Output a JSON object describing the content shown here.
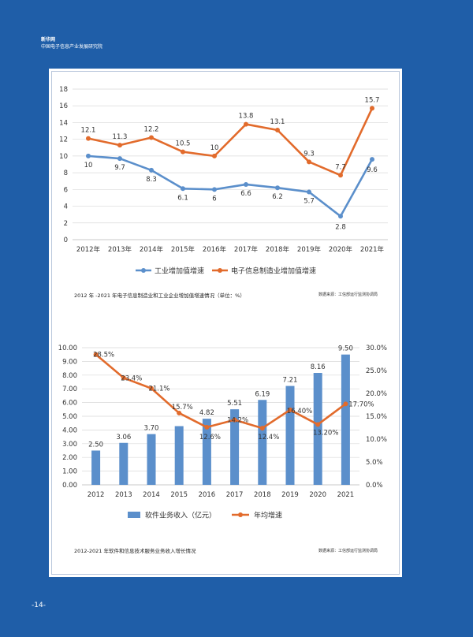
{
  "header": {
    "brand": "新华网",
    "institute": "中国电子信息产业发展研究院"
  },
  "page_number": "-14-",
  "chart_data": [
    {
      "type": "line",
      "categories": [
        "2012年",
        "2013年",
        "2014年",
        "2015年",
        "2016年",
        "2017年",
        "2018年",
        "2019年",
        "2020年",
        "2021年"
      ],
      "ylim": [
        0,
        18
      ],
      "yticks": [
        0,
        2,
        4,
        6,
        8,
        10,
        12,
        14,
        16,
        18
      ],
      "grid": true,
      "legend_position": "bottom",
      "series": [
        {
          "name": "工业增加值增速",
          "color": "#5b8fcb",
          "values": [
            10,
            9.7,
            8.3,
            6.1,
            6,
            6.6,
            6.2,
            5.7,
            2.8,
            9.6
          ],
          "labels": [
            "10",
            "9.7",
            "8.3",
            "6.1",
            "6",
            "6.6",
            "6.2",
            "5.7",
            "2.8",
            "9.6"
          ]
        },
        {
          "name": "电子信息制造业增加值增速",
          "color": "#e26b2c",
          "values": [
            12.1,
            11.3,
            12.2,
            10.5,
            10,
            13.8,
            13.1,
            9.3,
            7.7,
            15.7
          ],
          "labels": [
            "12.1",
            "11.3",
            "12.2",
            "10.5",
            "10",
            "13.8",
            "13.1",
            "9.3",
            "7.7",
            "15.7"
          ]
        }
      ],
      "caption": "2012 年 -2021 年电子信息制造业和工业企业增加值增速情况（单位：%）",
      "source": "数据来源：工信部运行监测协调局"
    },
    {
      "type": "bar",
      "categories": [
        "2012",
        "2013",
        "2014",
        "2015",
        "2016",
        "2017",
        "2018",
        "2019",
        "2020",
        "2021"
      ],
      "ylim": [
        0,
        10
      ],
      "yticks": [
        "0.00",
        "1.00",
        "2.00",
        "3.00",
        "4.00",
        "5.00",
        "6.00",
        "7.00",
        "8.00",
        "9.00",
        "10.00"
      ],
      "y2lim": [
        0,
        0.3
      ],
      "y2ticks": [
        "0.0%",
        "5.0%",
        "10.0%",
        "15.0%",
        "20.0%",
        "25.0%",
        "30.0%"
      ],
      "grid": true,
      "legend_position": "bottom",
      "series": [
        {
          "name": "软件业务收入（亿元）",
          "kind": "bar",
          "axis": "left",
          "color": "#5b8fcb",
          "values": [
            2.5,
            3.06,
            3.7,
            4.28,
            4.82,
            5.51,
            6.19,
            7.21,
            8.16,
            9.5
          ],
          "labels": [
            "2.50",
            "3.06",
            "3.70",
            "",
            "4.82",
            "5.51",
            "6.19",
            "7.21",
            "8.16",
            "9.50"
          ]
        },
        {
          "name": "年均增速",
          "kind": "line",
          "axis": "right",
          "color": "#e26b2c",
          "values": [
            28.5,
            23.4,
            21.1,
            15.7,
            12.6,
            14.2,
            12.4,
            16.4,
            13.2,
            17.7
          ],
          "labels": [
            "28.5%",
            "23.4%",
            "21.1%",
            "15.7%",
            "12.6%",
            "14.2%",
            "12.4%",
            "16.40%",
            "13.20%",
            "17.70%"
          ]
        }
      ],
      "caption": "2012-2021 年软件和信息技术服务业务收入增长情况",
      "source": "数据来源：工信部运行监测协调局"
    }
  ]
}
